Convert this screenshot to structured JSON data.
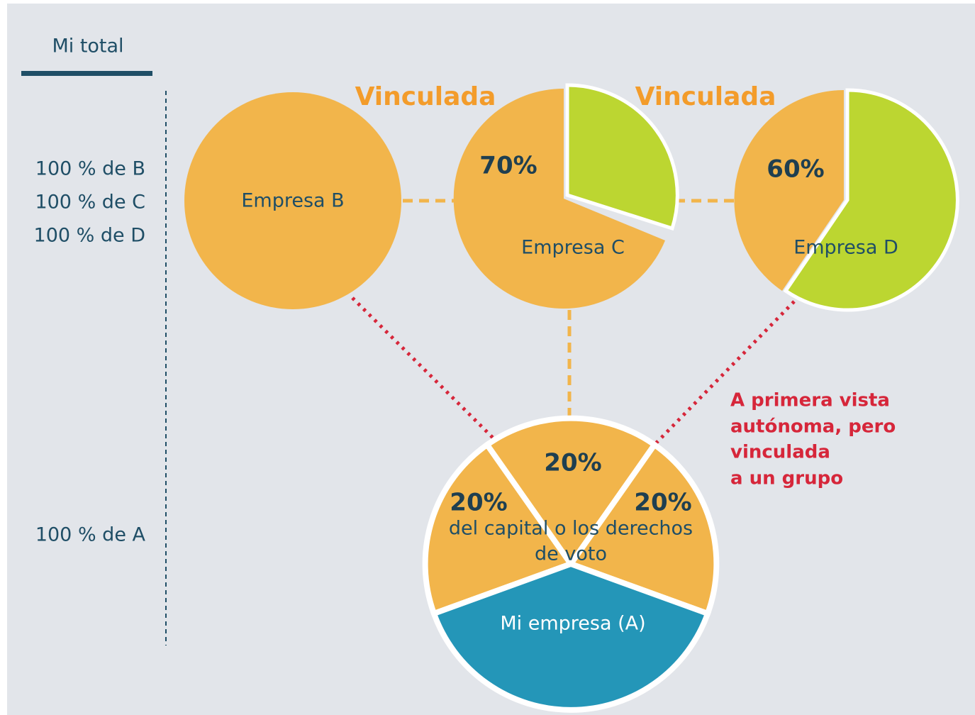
{
  "header": {
    "title": "Mi total"
  },
  "left_labels": [
    "100 % de B",
    "100 % de C",
    "100 % de D",
    "100 % de A"
  ],
  "links": [
    "Vinculada",
    "Vinculada"
  ],
  "nodes": [
    {
      "label": "Empresa B"
    },
    {
      "label": "Empresa C",
      "share": "70%"
    },
    {
      "label": "Empresa D",
      "share": "60%"
    },
    {
      "label": "Mi empresa (A)",
      "shares": [
        "20%",
        "20%",
        "20%"
      ],
      "caption": [
        "del capital o los derechos",
        "de voto"
      ]
    }
  ],
  "note": [
    "A primera vista",
    "autónoma, pero",
    "vinculada",
    "a un grupo"
  ]
}
